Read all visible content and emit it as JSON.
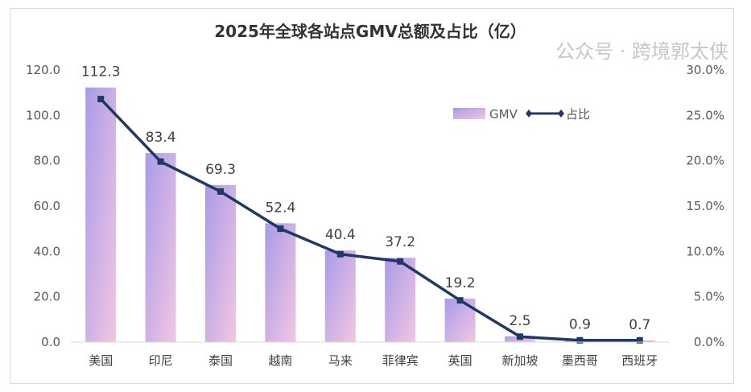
{
  "chart_data": {
    "type": "bar",
    "title": "2025年全球各站点GMV总额及占比（亿）",
    "categories": [
      "美国",
      "印尼",
      "泰国",
      "越南",
      "马来",
      "菲律宾",
      "英国",
      "新加坡",
      "墨西哥",
      "西班牙"
    ],
    "series": [
      {
        "name": "GMV",
        "type": "bar",
        "axis": "left",
        "values": [
          112.3,
          83.4,
          69.3,
          52.4,
          40.4,
          37.2,
          19.2,
          2.5,
          0.9,
          0.7
        ],
        "color_start": "#a99be8",
        "color_end": "#f2c6e2"
      },
      {
        "name": "占比",
        "type": "line",
        "axis": "right",
        "values": [
          26.8,
          19.9,
          16.6,
          12.5,
          9.7,
          8.9,
          4.6,
          0.6,
          0.2,
          0.2
        ],
        "color": "#1f3864"
      }
    ],
    "ylim": [
      0,
      120
    ],
    "yticks": [
      "0.0",
      "20.0",
      "40.0",
      "60.0",
      "80.0",
      "100.0",
      "120.0"
    ],
    "y2lim": [
      0,
      30
    ],
    "y2ticks": [
      "0.0%",
      "5.0%",
      "10.0%",
      "15.0%",
      "20.0%",
      "25.0%",
      "30.0%"
    ],
    "legend": "top-right",
    "grid": false
  },
  "watermark": "公众号 · 跨境郭太侠"
}
